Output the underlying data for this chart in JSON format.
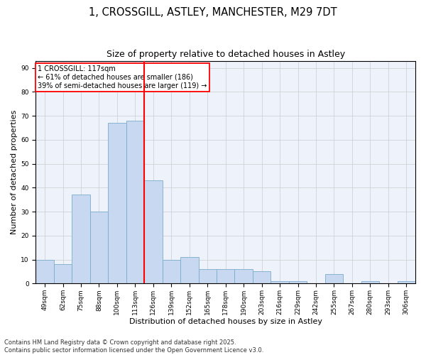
{
  "title_line1": "1, CROSSGILL, ASTLEY, MANCHESTER, M29 7DT",
  "title_line2": "Size of property relative to detached houses in Astley",
  "xlabel": "Distribution of detached houses by size in Astley",
  "ylabel": "Number of detached properties",
  "categories": [
    "49sqm",
    "62sqm",
    "75sqm",
    "88sqm",
    "100sqm",
    "113sqm",
    "126sqm",
    "139sqm",
    "152sqm",
    "165sqm",
    "178sqm",
    "190sqm",
    "203sqm",
    "216sqm",
    "229sqm",
    "242sqm",
    "255sqm",
    "267sqm",
    "280sqm",
    "293sqm",
    "306sqm"
  ],
  "values": [
    10,
    8,
    37,
    30,
    67,
    68,
    43,
    10,
    11,
    6,
    6,
    6,
    5,
    1,
    1,
    0,
    4,
    0,
    1,
    0,
    1
  ],
  "bar_color": "#c8d8f0",
  "bar_edge_color": "#7aabcc",
  "red_line_x": 5.5,
  "annotation_text": "1 CROSSGILL: 117sqm\n← 61% of detached houses are smaller (186)\n39% of semi-detached houses are larger (119) →",
  "annotation_box_color": "white",
  "annotation_border_color": "red",
  "ylim": [
    0,
    93
  ],
  "yticks": [
    0,
    10,
    20,
    30,
    40,
    50,
    60,
    70,
    80,
    90
  ],
  "grid_color": "#cccccc",
  "background_color": "#eef2fb",
  "footer_text": "Contains HM Land Registry data © Crown copyright and database right 2025.\nContains public sector information licensed under the Open Government Licence v3.0.",
  "title_fontsize": 10.5,
  "subtitle_fontsize": 9,
  "label_fontsize": 8,
  "tick_fontsize": 6.5,
  "footer_fontsize": 6,
  "annot_fontsize": 7
}
